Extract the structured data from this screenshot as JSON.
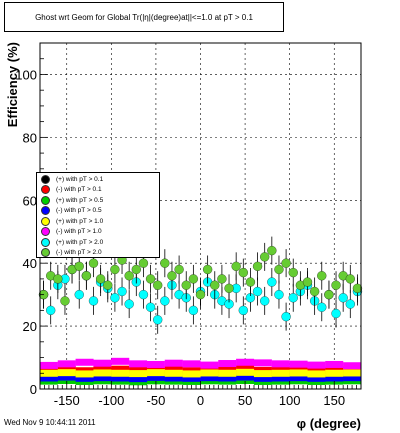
{
  "chart_data": {
    "type": "scatter",
    "title": "Ghost wrt Geom for Global Tr(|η|(degree)at||<=1.0 at pT > 0.1",
    "xlabel": "φ (degree)",
    "ylabel": "Efficiency (%)",
    "xlim": [
      -180,
      180
    ],
    "ylim": [
      0,
      110
    ],
    "x_ticks": [
      -150,
      -100,
      -50,
      0,
      50,
      100,
      150
    ],
    "y_ticks": [
      0,
      20,
      40,
      60,
      80,
      100
    ],
    "grid": true,
    "legend_position": "left-middle",
    "series": [
      {
        "name": "(+) with pT > 0.1",
        "color": "#000000",
        "x": [
          -170,
          -150,
          -130,
          -110,
          -90,
          -70,
          -50,
          -30,
          -10,
          10,
          30,
          50,
          70,
          90,
          110,
          130,
          150,
          170
        ],
        "y": [
          3.0,
          3.2,
          2.8,
          3.1,
          3.0,
          2.9,
          3.2,
          3.0,
          2.8,
          3.1,
          3.0,
          3.3,
          2.9,
          3.0,
          3.1,
          2.8,
          3.0,
          3.1
        ]
      },
      {
        "name": "(-) with pT > 0.1",
        "color": "#ff0000",
        "x": [
          -170,
          -150,
          -130,
          -110,
          -90,
          -70,
          -50,
          -30,
          -10,
          10,
          30,
          50,
          70,
          90,
          110,
          130,
          150,
          170
        ],
        "y": [
          6.0,
          6.2,
          5.8,
          6.1,
          6.3,
          5.9,
          6.0,
          6.2,
          5.8,
          6.1,
          6.0,
          6.4,
          5.9,
          6.1,
          6.2,
          5.9,
          6.0,
          6.1
        ]
      },
      {
        "name": "(+) with pT > 0.5",
        "color": "#00cc00",
        "x": [
          -170,
          -150,
          -130,
          -110,
          -90,
          -70,
          -50,
          -30,
          -10,
          10,
          30,
          50,
          70,
          90,
          110,
          130,
          150,
          170
        ],
        "y": [
          2.5,
          2.7,
          2.4,
          2.6,
          2.5,
          2.3,
          2.6,
          2.5,
          2.4,
          2.6,
          2.5,
          2.7,
          2.4,
          2.5,
          2.6,
          2.4,
          2.5,
          2.6
        ]
      },
      {
        "name": "(-) with pT > 0.5",
        "color": "#0000ff",
        "x": [
          -170,
          -150,
          -130,
          -110,
          -90,
          -70,
          -50,
          -30,
          -10,
          10,
          30,
          50,
          70,
          90,
          110,
          130,
          150,
          170
        ],
        "y": [
          3.5,
          3.8,
          3.4,
          3.6,
          3.5,
          3.3,
          3.7,
          3.5,
          3.4,
          3.6,
          3.5,
          3.8,
          3.4,
          3.5,
          3.6,
          3.4,
          3.5,
          3.6
        ]
      },
      {
        "name": "(+) with pT > 1.0",
        "color": "#ffff00",
        "x": [
          -170,
          -150,
          -130,
          -110,
          -90,
          -70,
          -50,
          -30,
          -10,
          10,
          30,
          50,
          70,
          90,
          110,
          130,
          150,
          170
        ],
        "y": [
          5.0,
          5.2,
          4.8,
          5.1,
          5.0,
          4.9,
          5.2,
          5.0,
          4.8,
          5.1,
          5.0,
          5.3,
          4.9,
          5.0,
          5.1,
          4.8,
          5.0,
          5.1
        ]
      },
      {
        "name": "(-) with pT > 1.0",
        "color": "#ff00ff",
        "x": [
          -170,
          -150,
          -130,
          -110,
          -90,
          -70,
          -50,
          -30,
          -10,
          10,
          30,
          50,
          70,
          90,
          110,
          130,
          150,
          170
        ],
        "y": [
          7.5,
          8.0,
          8.5,
          8.2,
          8.8,
          8.0,
          7.8,
          8.2,
          8.0,
          7.6,
          8.1,
          8.5,
          8.3,
          8.0,
          7.9,
          7.6,
          7.8,
          7.4
        ]
      },
      {
        "name": "(+) with pT > 2.0",
        "color": "#00ffff",
        "x": [
          -176,
          -168,
          -160,
          -152,
          -144,
          -136,
          -128,
          -120,
          -112,
          -104,
          -96,
          -88,
          -80,
          -72,
          -64,
          -56,
          -48,
          -40,
          -32,
          -24,
          -16,
          -8,
          0,
          8,
          16,
          24,
          32,
          40,
          48,
          56,
          64,
          72,
          80,
          88,
          96,
          104,
          112,
          120,
          128,
          136,
          144,
          152,
          160,
          168,
          176
        ],
        "y": [
          30,
          25,
          33,
          35,
          38,
          30,
          36,
          28,
          34,
          32,
          29,
          31,
          27,
          34,
          30,
          26,
          22,
          28,
          33,
          30,
          29,
          25,
          31,
          34,
          30,
          28,
          27,
          32,
          25,
          29,
          31,
          28,
          34,
          30,
          23,
          29,
          31,
          33,
          28,
          26,
          30,
          24,
          29,
          27,
          31
        ]
      },
      {
        "name": "(-) with pT > 2.0",
        "color": "#66cc33",
        "x": [
          -176,
          -168,
          -160,
          -152,
          -144,
          -136,
          -128,
          -120,
          -112,
          -104,
          -96,
          -88,
          -80,
          -72,
          -64,
          -56,
          -48,
          -40,
          -32,
          -24,
          -16,
          -8,
          0,
          8,
          16,
          24,
          32,
          40,
          48,
          56,
          64,
          72,
          80,
          88,
          96,
          104,
          112,
          120,
          128,
          136,
          144,
          152,
          160,
          168,
          176
        ],
        "y": [
          30,
          36,
          35,
          28,
          38,
          39,
          36,
          40,
          35,
          33,
          38,
          41,
          36,
          38,
          40,
          35,
          33,
          40,
          36,
          38,
          33,
          35,
          30,
          38,
          33,
          35,
          32,
          39,
          37,
          34,
          39,
          42,
          44,
          38,
          40,
          37,
          33,
          34,
          31,
          36,
          30,
          33,
          36,
          35,
          32
        ]
      }
    ]
  },
  "footer": {
    "timestamp": "Wed Nov  9 10:44:11 2011"
  }
}
